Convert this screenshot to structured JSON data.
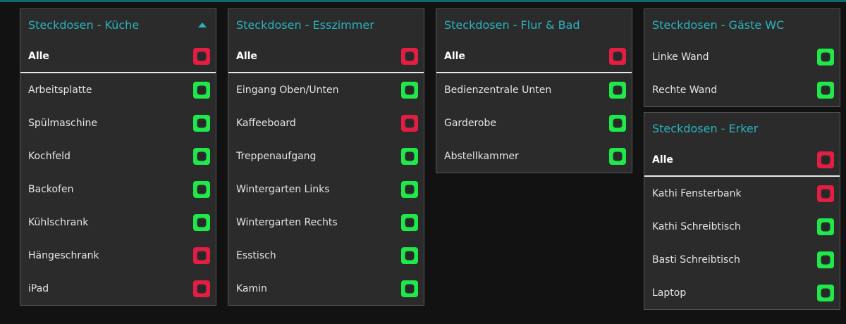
{
  "accent_color": "#2ab3c0",
  "status_colors": {
    "on": "#1fe84b",
    "off": "#e41d45"
  },
  "cards": [
    {
      "title": "Steckdosen - Küche",
      "collapse_icon": "chevron-up-icon",
      "all_label": "Alle",
      "all_state": "off",
      "items": [
        {
          "label": "Arbeitsplatte",
          "state": "on"
        },
        {
          "label": "Spülmaschine",
          "state": "on"
        },
        {
          "label": "Kochfeld",
          "state": "on"
        },
        {
          "label": "Backofen",
          "state": "on"
        },
        {
          "label": "Kühlschrank",
          "state": "on"
        },
        {
          "label": "Hängeschrank",
          "state": "off"
        },
        {
          "label": "iPad",
          "state": "off"
        }
      ]
    },
    {
      "title": "Steckdosen - Esszimmer",
      "all_label": "Alle",
      "all_state": "off",
      "items": [
        {
          "label": "Eingang Oben/Unten",
          "state": "on"
        },
        {
          "label": "Kaffeeboard",
          "state": "off"
        },
        {
          "label": "Treppenaufgang",
          "state": "on"
        },
        {
          "label": "Wintergarten Links",
          "state": "on"
        },
        {
          "label": "Wintergarten Rechts",
          "state": "on"
        },
        {
          "label": "Esstisch",
          "state": "on"
        },
        {
          "label": "Kamin",
          "state": "on"
        }
      ]
    },
    {
      "title": "Steckdosen - Flur & Bad",
      "all_label": "Alle",
      "all_state": "off",
      "items": [
        {
          "label": "Bedienzentrale Unten",
          "state": "on"
        },
        {
          "label": "Garderobe",
          "state": "on"
        },
        {
          "label": "Abstellkammer",
          "state": "on"
        }
      ]
    },
    {
      "title": "Steckdosen - Gäste WC",
      "items": [
        {
          "label": "Linke Wand",
          "state": "on"
        },
        {
          "label": "Rechte Wand",
          "state": "on"
        }
      ]
    },
    {
      "title": "Steckdosen - Erker",
      "all_label": "Alle",
      "all_state": "off",
      "items": [
        {
          "label": "Kathi Fensterbank",
          "state": "off"
        },
        {
          "label": "Kathi Schreibtisch",
          "state": "on"
        },
        {
          "label": "Basti Schreibtisch",
          "state": "on"
        },
        {
          "label": "Laptop",
          "state": "on"
        }
      ]
    }
  ]
}
